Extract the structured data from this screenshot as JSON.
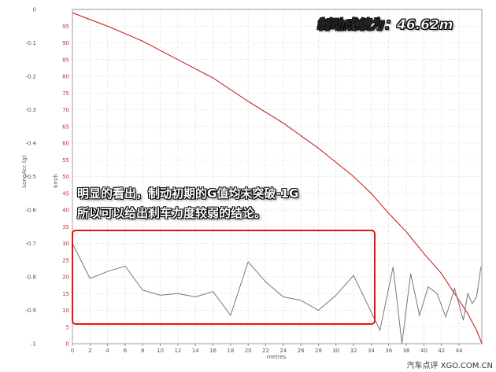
{
  "chart_data": [
    {
      "type": "line",
      "xlabel": "metres",
      "ylabel_left": "LongAcc (g)",
      "ylabel_right": "km/h",
      "x_ticks": [
        "0",
        "2",
        "4",
        "6",
        "8",
        "10",
        "12",
        "14",
        "16",
        "18",
        "20",
        "22",
        "24",
        "26",
        "28",
        "30",
        "32",
        "34",
        "36",
        "38",
        "40",
        "42",
        "44"
      ],
      "left_ticks": [
        "0",
        "-0.1",
        "-0.2",
        "-0.3",
        "-0.4",
        "-0.5",
        "-0.6",
        "-0.7",
        "-0.8",
        "-0.9",
        "-1"
      ],
      "speed_ticks": [
        "95",
        "90",
        "85",
        "80",
        "75",
        "70",
        "65",
        "60",
        "55",
        "50",
        "45",
        "40",
        "35",
        "30",
        "25",
        "20",
        "15",
        "10",
        "5",
        "0"
      ],
      "xlim": [
        0,
        46.6
      ],
      "speed_ylim": [
        0,
        100
      ],
      "acc_ylim": [
        -1,
        0
      ],
      "grid": true,
      "series": [
        {
          "axis": "speed",
          "color": "#cc2222",
          "x": [
            0,
            4,
            8,
            12,
            16,
            20,
            24,
            28,
            32,
            34,
            36,
            38,
            40,
            42,
            44,
            45,
            46,
            46.62
          ],
          "y": [
            99,
            95,
            90.5,
            85,
            79.5,
            72.5,
            66,
            58.5,
            50,
            45,
            39,
            33.5,
            27,
            21,
            13,
            9,
            4,
            0
          ]
        },
        {
          "axis": "acc",
          "color": "#777777",
          "x": [
            0,
            2,
            4,
            6,
            8,
            10,
            12,
            14,
            16,
            18,
            20,
            22,
            24,
            26,
            28,
            30,
            32,
            34,
            35,
            36.5,
            37.5,
            38.5,
            39.5,
            40.5,
            41.5,
            42.5,
            43.5,
            44.5,
            45,
            45.5,
            46,
            46.5
          ],
          "y": [
            -0.7,
            -0.805,
            -0.784,
            -0.768,
            -0.84,
            -0.855,
            -0.85,
            -0.86,
            -0.844,
            -0.915,
            -0.755,
            -0.815,
            -0.86,
            -0.87,
            -0.9,
            -0.855,
            -0.796,
            -0.905,
            -0.96,
            -0.77,
            -1.0,
            -0.79,
            -0.915,
            -0.83,
            -0.85,
            -0.92,
            -0.835,
            -0.93,
            -0.85,
            -0.88,
            -0.86,
            -0.77
          ]
        }
      ]
    }
  ],
  "annotations": {
    "result": "制动成绩为：46.62m",
    "note_line1": "明显的看出，制动初期的G值均未突破-1G",
    "note_line2": "所以可以给出刹车力度较弱的结论。",
    "watermark": "汽车点评 XGO.COM.CN"
  },
  "colors": {
    "speed_line": "#cc2222",
    "acc_line": "#777777",
    "highlight_box": "#ee1111",
    "grid": "#bbbbbb"
  }
}
